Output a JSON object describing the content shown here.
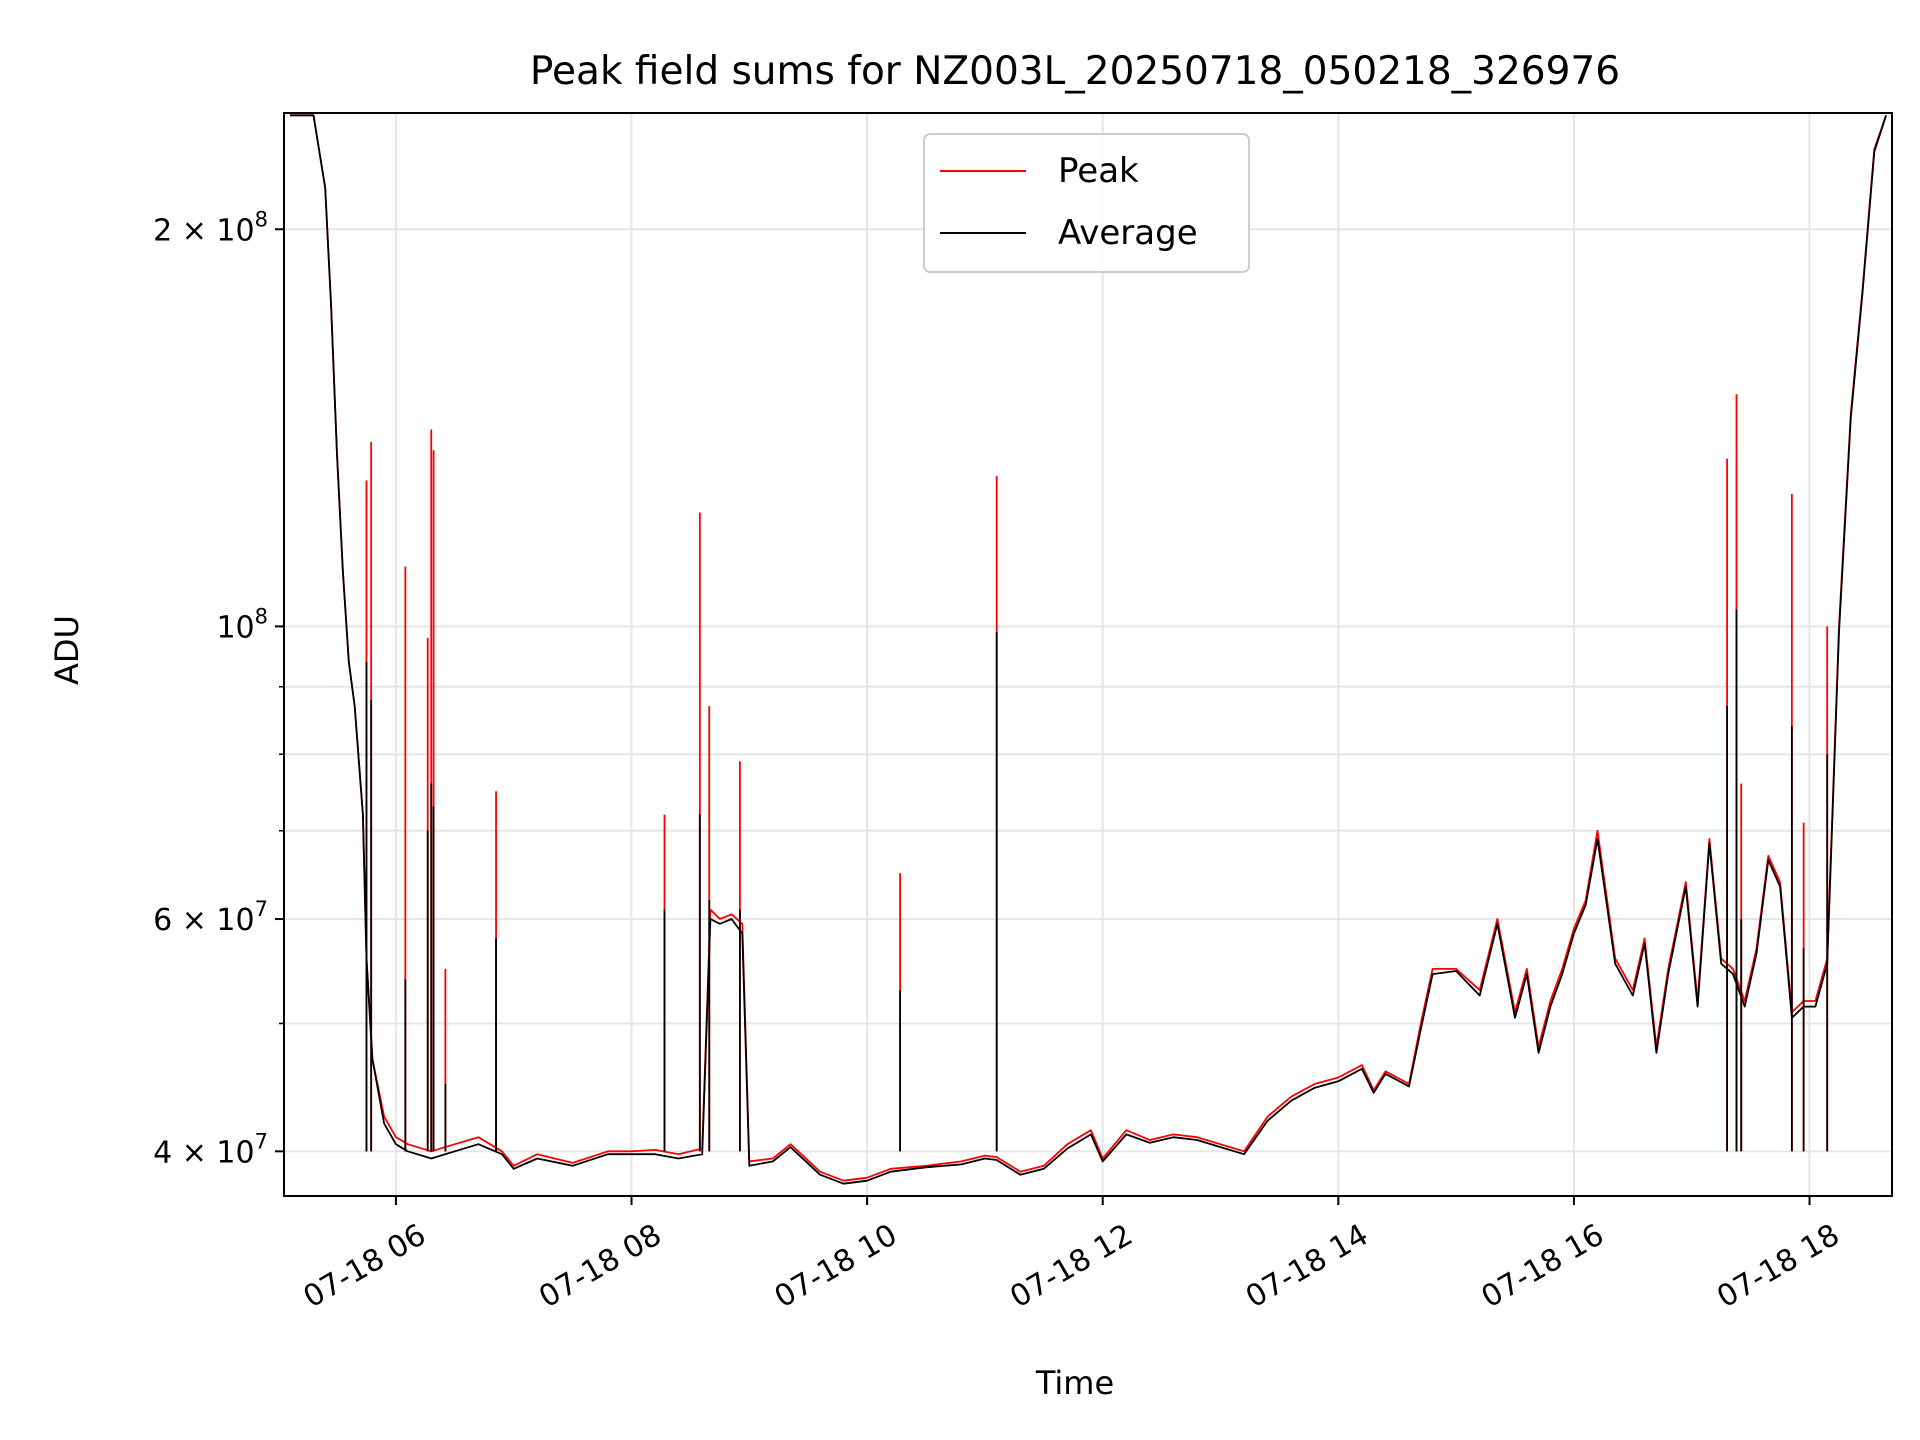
{
  "chart_data": {
    "type": "line",
    "title": "Peak field sums for NZ003L_20250718_050218_326976",
    "xlabel": "Time",
    "ylabel": "ADU",
    "y_scale": "log",
    "ylim": [
      37000000,
      245000000
    ],
    "xlim_hours": [
      5.05,
      18.7
    ],
    "x_ticks": [
      "07-18 06",
      "07-18 08",
      "07-18 10",
      "07-18 12",
      "07-18 14",
      "07-18 16",
      "07-18 18"
    ],
    "x_tick_hours": [
      6,
      8,
      10,
      12,
      14,
      16,
      18
    ],
    "y_tick_values": [
      40000000,
      60000000,
      100000000,
      200000000
    ],
    "y_ticks": [
      {
        "base": "4 × 10",
        "exp": "7"
      },
      {
        "base": "6 × 10",
        "exp": "7"
      },
      {
        "base": "10",
        "exp": "8"
      },
      {
        "base": "2 × 10",
        "exp": "8"
      }
    ],
    "y_minor_values": [
      50000000,
      70000000,
      80000000,
      90000000
    ],
    "grid": true,
    "legend_position": "top-center",
    "series": [
      {
        "name": "Peak",
        "color": "#ff0000",
        "note_hours_values": "x = hours of 07-18, y = ADU",
        "x": [
          5.1,
          5.3,
          5.4,
          5.45,
          5.5,
          5.55,
          5.6,
          5.65,
          5.72,
          5.75,
          5.8,
          5.9,
          6.0,
          6.1,
          6.3,
          6.5,
          6.7,
          6.9,
          7.0,
          7.2,
          7.5,
          7.8,
          8.0,
          8.2,
          8.4,
          8.6,
          8.67,
          8.75,
          8.85,
          8.94,
          9.0,
          9.2,
          9.35,
          9.6,
          9.8,
          10.0,
          10.2,
          10.5,
          10.8,
          11.0,
          11.1,
          11.3,
          11.5,
          11.7,
          11.9,
          12.0,
          12.2,
          12.4,
          12.6,
          12.8,
          13.0,
          13.2,
          13.4,
          13.6,
          13.8,
          14.0,
          14.2,
          14.3,
          14.4,
          14.6,
          14.7,
          14.8,
          15.0,
          15.2,
          15.35,
          15.5,
          15.6,
          15.7,
          15.8,
          15.9,
          16.0,
          16.1,
          16.2,
          16.35,
          16.5,
          16.6,
          16.7,
          16.8,
          16.95,
          17.05,
          17.15,
          17.25,
          17.35,
          17.45,
          17.55,
          17.65,
          17.75,
          17.85,
          17.95,
          18.05,
          18.15,
          18.25,
          18.35,
          18.45,
          18.55,
          18.65
        ],
        "y": [
          244000000,
          244000000,
          215000000,
          175000000,
          135000000,
          110000000,
          94000000,
          87000000,
          72000000,
          56000000,
          47000000,
          42500000,
          41000000,
          40500000,
          40000000,
          40500000,
          41000000,
          40000000,
          39000000,
          39800000,
          39200000,
          40000000,
          40000000,
          40100000,
          39800000,
          40200000,
          61000000,
          60000000,
          60500000,
          59500000,
          39300000,
          39500000,
          40500000,
          38600000,
          38000000,
          38200000,
          38800000,
          39000000,
          39300000,
          39700000,
          39600000,
          38600000,
          39000000,
          40500000,
          41500000,
          39500000,
          41500000,
          40800000,
          41200000,
          41000000,
          40500000,
          40000000,
          42500000,
          44000000,
          45000000,
          45500000,
          46500000,
          44500000,
          46000000,
          45000000,
          50000000,
          55000000,
          55000000,
          53000000,
          60000000,
          51000000,
          55000000,
          48000000,
          52000000,
          55000000,
          59000000,
          62000000,
          70000000,
          56000000,
          53000000,
          58000000,
          48000000,
          55000000,
          64000000,
          52000000,
          69000000,
          56000000,
          55000000,
          52000000,
          57000000,
          67000000,
          64000000,
          51000000,
          52000000,
          52000000,
          56000000,
          100000000,
          145000000,
          180000000,
          230000000,
          244000000
        ],
        "spikes": [
          {
            "x": 5.75,
            "y": 129000000
          },
          {
            "x": 5.79,
            "y": 138000000
          },
          {
            "x": 6.08,
            "y": 111000000
          },
          {
            "x": 6.27,
            "y": 98000000
          },
          {
            "x": 6.3,
            "y": 141000000
          },
          {
            "x": 6.32,
            "y": 136000000
          },
          {
            "x": 6.42,
            "y": 55000000
          },
          {
            "x": 6.85,
            "y": 75000000
          },
          {
            "x": 8.28,
            "y": 72000000
          },
          {
            "x": 8.58,
            "y": 122000000
          },
          {
            "x": 8.66,
            "y": 87000000
          },
          {
            "x": 8.92,
            "y": 79000000
          },
          {
            "x": 10.28,
            "y": 65000000
          },
          {
            "x": 11.1,
            "y": 130000000
          },
          {
            "x": 17.3,
            "y": 134000000
          },
          {
            "x": 17.38,
            "y": 150000000
          },
          {
            "x": 17.42,
            "y": 76000000
          },
          {
            "x": 17.85,
            "y": 126000000
          },
          {
            "x": 17.95,
            "y": 71000000
          },
          {
            "x": 18.15,
            "y": 100000000
          }
        ]
      },
      {
        "name": "Average",
        "color": "#000000",
        "x": [
          5.1,
          5.3,
          5.4,
          5.45,
          5.5,
          5.55,
          5.6,
          5.65,
          5.72,
          5.75,
          5.8,
          5.9,
          6.0,
          6.1,
          6.3,
          6.5,
          6.7,
          6.9,
          7.0,
          7.2,
          7.5,
          7.8,
          8.0,
          8.2,
          8.4,
          8.6,
          8.67,
          8.75,
          8.85,
          8.94,
          9.0,
          9.2,
          9.35,
          9.6,
          9.8,
          10.0,
          10.2,
          10.5,
          10.8,
          11.0,
          11.1,
          11.3,
          11.5,
          11.7,
          11.9,
          12.0,
          12.2,
          12.4,
          12.6,
          12.8,
          13.0,
          13.2,
          13.4,
          13.6,
          13.8,
          14.0,
          14.2,
          14.3,
          14.4,
          14.6,
          14.7,
          14.8,
          15.0,
          15.2,
          15.35,
          15.5,
          15.6,
          15.7,
          15.8,
          15.9,
          16.0,
          16.1,
          16.2,
          16.35,
          16.5,
          16.6,
          16.7,
          16.8,
          16.95,
          17.05,
          17.15,
          17.25,
          17.35,
          17.45,
          17.55,
          17.65,
          17.75,
          17.85,
          17.95,
          18.05,
          18.15,
          18.25,
          18.35,
          18.45,
          18.55,
          18.65
        ],
        "y": [
          244000000,
          244000000,
          215000000,
          175000000,
          135000000,
          110000000,
          94000000,
          87000000,
          72000000,
          56000000,
          47000000,
          42000000,
          40500000,
          40000000,
          39500000,
          40000000,
          40500000,
          39800000,
          38800000,
          39500000,
          39000000,
          39800000,
          39800000,
          39800000,
          39500000,
          39800000,
          60000000,
          59500000,
          60000000,
          58500000,
          39000000,
          39300000,
          40300000,
          38400000,
          37800000,
          38000000,
          38600000,
          38900000,
          39100000,
          39500000,
          39400000,
          38400000,
          38800000,
          40200000,
          41200000,
          39300000,
          41200000,
          40600000,
          41000000,
          40800000,
          40300000,
          39800000,
          42200000,
          43700000,
          44700000,
          45200000,
          46200000,
          44300000,
          45800000,
          44800000,
          49500000,
          54500000,
          54800000,
          52500000,
          59500000,
          50500000,
          54500000,
          47500000,
          51500000,
          54500000,
          58500000,
          61500000,
          69000000,
          55500000,
          52500000,
          57500000,
          47500000,
          54500000,
          63500000,
          51500000,
          68500000,
          55500000,
          54500000,
          51500000,
          56500000,
          66500000,
          63500000,
          50500000,
          51500000,
          51500000,
          55500000,
          99000000,
          144000000,
          179000000,
          229000000,
          244000000
        ],
        "spikes": [
          {
            "x": 5.75,
            "y": 94000000
          },
          {
            "x": 5.79,
            "y": 88000000
          },
          {
            "x": 6.08,
            "y": 54000000
          },
          {
            "x": 6.27,
            "y": 70000000
          },
          {
            "x": 6.3,
            "y": 76000000
          },
          {
            "x": 6.32,
            "y": 73000000
          },
          {
            "x": 6.42,
            "y": 45000000
          },
          {
            "x": 6.85,
            "y": 58000000
          },
          {
            "x": 8.28,
            "y": 61000000
          },
          {
            "x": 8.58,
            "y": 72000000
          },
          {
            "x": 8.66,
            "y": 62000000
          },
          {
            "x": 8.92,
            "y": 61000000
          },
          {
            "x": 10.28,
            "y": 53000000
          },
          {
            "x": 11.1,
            "y": 99000000
          },
          {
            "x": 17.3,
            "y": 87000000
          },
          {
            "x": 17.38,
            "y": 103000000
          },
          {
            "x": 17.42,
            "y": 60000000
          },
          {
            "x": 17.85,
            "y": 84000000
          },
          {
            "x": 17.95,
            "y": 57000000
          },
          {
            "x": 18.15,
            "y": 80000000
          }
        ]
      }
    ]
  }
}
